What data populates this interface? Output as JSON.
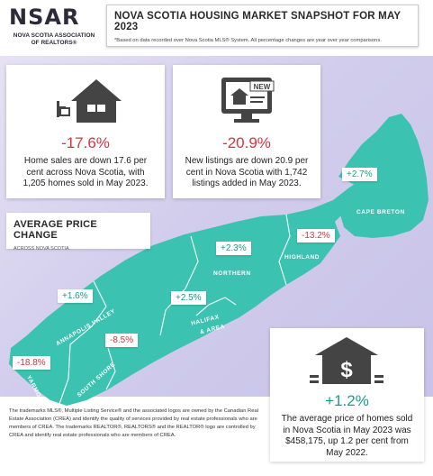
{
  "logo": {
    "wordmark": "NSAR",
    "line1": "NOVA SCOTIA ASSOCIATION",
    "line2": "OF REALTORS®"
  },
  "header": {
    "title": "NOVA SCOTIA HOUSING MARKET SNAPSHOT FOR MAY 2023",
    "note": "*Based on data recorded over Nova Scotia MLS® System. All percentage changes are year over year comparisons."
  },
  "sales": {
    "change": "-17.6%",
    "text": "Home sales are down 17.6 per cent across Nova Scotia, with 1,205 homes sold in May 2023.",
    "icon": "house-sold-sign-icon"
  },
  "listings": {
    "change": "-20.9%",
    "text": "New listings are down 20.9 per cent in Nova Scotia with 1,742 listings added in May 2023.",
    "icon": "monitor-new-listing-icon",
    "badge": "NEW"
  },
  "avg_price": {
    "title": "AVERAGE PRICE CHANGE",
    "subtitle": "ACROSS NOVA SCOTIA"
  },
  "price_card": {
    "change": "+1.2%",
    "text": "The average price of homes sold in Nova Scotia in May 2023 was $458,175, up 1.2 per cent from May 2022.",
    "icon": "house-dollar-icon",
    "symbol": "$"
  },
  "regions": {
    "cape_breton": {
      "name": "CAPE BRETON",
      "change": "+2.7%"
    },
    "highland": {
      "name": "HIGHLAND",
      "change": "-13.2%"
    },
    "northern": {
      "name": "NORTHERN",
      "change": "+2.3%"
    },
    "halifax": {
      "name1": "HALIFAX",
      "name2": "& AREA",
      "change": "+2.5%"
    },
    "annapolis": {
      "name": "ANNAPOLIS VALLEY",
      "change": "+1.6%"
    },
    "south_shore": {
      "name": "SOUTH SHORE",
      "change": "-8.5%"
    },
    "yarmouth": {
      "name": "YARMOUTH",
      "change": "-18.8%"
    }
  },
  "colors": {
    "map_fill": "#3cc2b0",
    "positive": "#1a9c8c",
    "negative": "#d9333f",
    "background": "#d2cdec"
  },
  "footer": "The trademarks MLS®, Multiple Listing Service® and the associated logos are owned by the Canadian Real Estate Association (CREA) and identify the quality of services provided by real estate professionals who are members of CREA. The trademarks REALTOR®, REALTORS® and the REALTOR® logo are controlled by CREA and identify real estate professionals who are members of CREA."
}
